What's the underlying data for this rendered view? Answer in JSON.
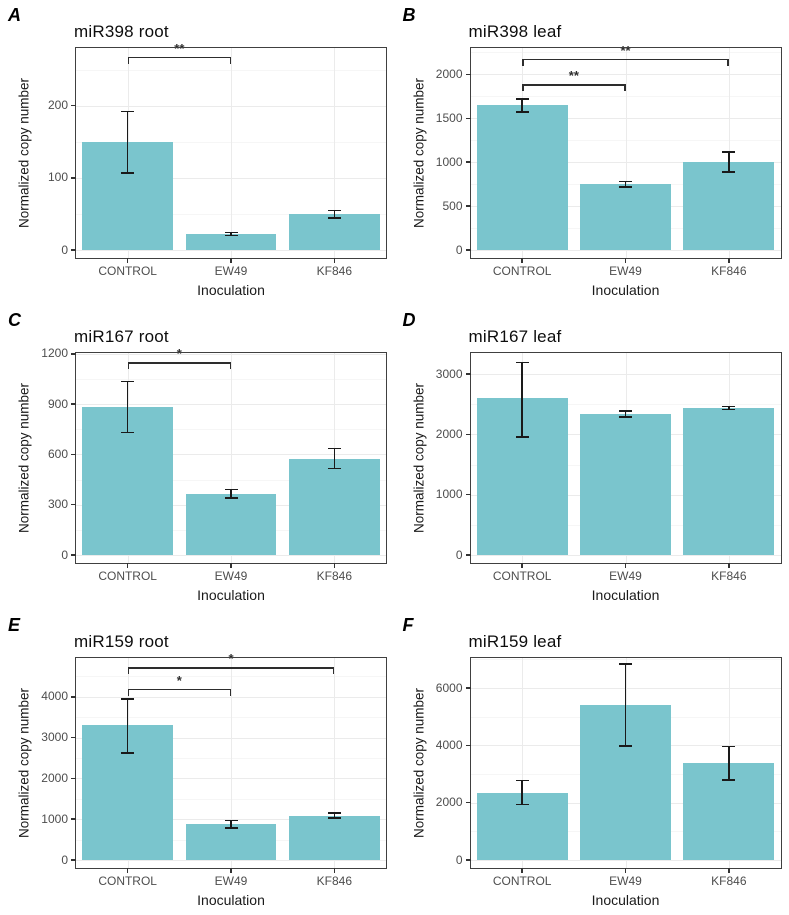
{
  "figure": {
    "ylabel": "Normalized copy number",
    "xlabel": "Inoculation",
    "categories": [
      "CONTROL",
      "EW49",
      "KF846"
    ],
    "colors": {
      "background": "#ffffff",
      "bar_fill": "#7AC5CD",
      "panel_border": "#404040",
      "grid_major": "#ebebeb",
      "grid_minor": "#f6f6f6",
      "tick_label": "#4d4d4d",
      "axis_title": "#1a1a1a",
      "panel_title": "#0d0d0d",
      "errorbar": "#1a1a1a",
      "significance": "#2d2d2d"
    }
  },
  "chart_data": [
    {
      "panel_label": "A",
      "title": "miR398 root",
      "type": "bar",
      "xlabel": "Inoculation",
      "ylabel": "Normalized copy number",
      "categories": [
        "CONTROL",
        "EW49",
        "KF846"
      ],
      "values": [
        150,
        22,
        50
      ],
      "error_low": [
        107,
        20,
        44
      ],
      "error_high": [
        192,
        24,
        55
      ],
      "yticks": [
        0,
        100,
        200
      ],
      "ylim": [
        0,
        280
      ],
      "grid": true,
      "significance": [
        {
          "from": "CONTROL",
          "to": "EW49",
          "label": "**",
          "y": 268
        }
      ]
    },
    {
      "panel_label": "B",
      "title": "miR398 leaf",
      "type": "bar",
      "xlabel": "Inoculation",
      "ylabel": "Normalized copy number",
      "categories": [
        "CONTROL",
        "EW49",
        "KF846"
      ],
      "values": [
        1650,
        750,
        1000
      ],
      "error_low": [
        1570,
        720,
        890
      ],
      "error_high": [
        1720,
        780,
        1115
      ],
      "yticks": [
        0,
        500,
        1000,
        1500,
        2000
      ],
      "ylim": [
        0,
        2300
      ],
      "grid": true,
      "significance": [
        {
          "from": "CONTROL",
          "to": "KF846",
          "label": "**",
          "y": 2180
        },
        {
          "from": "CONTROL",
          "to": "EW49",
          "label": "**",
          "y": 1890
        }
      ]
    },
    {
      "panel_label": "C",
      "title": "miR167 root",
      "type": "bar",
      "xlabel": "Inoculation",
      "ylabel": "Normalized copy number",
      "categories": [
        "CONTROL",
        "EW49",
        "KF846"
      ],
      "values": [
        880,
        365,
        575
      ],
      "error_low": [
        730,
        340,
        515
      ],
      "error_high": [
        1035,
        390,
        635
      ],
      "yticks": [
        0,
        300,
        600,
        900,
        1200
      ],
      "ylim": [
        0,
        1205
      ],
      "grid": true,
      "significance": [
        {
          "from": "CONTROL",
          "to": "EW49",
          "label": "*",
          "y": 1150
        }
      ]
    },
    {
      "panel_label": "D",
      "title": "miR167 leaf",
      "type": "bar",
      "xlabel": "Inoculation",
      "ylabel": "Normalized copy number",
      "categories": [
        "CONTROL",
        "EW49",
        "KF846"
      ],
      "values": [
        2600,
        2340,
        2440
      ],
      "error_low": [
        1960,
        2290,
        2410
      ],
      "error_high": [
        3190,
        2390,
        2465
      ],
      "yticks": [
        0,
        1000,
        2000,
        3000
      ],
      "ylim": [
        0,
        3350
      ],
      "grid": true,
      "significance": []
    },
    {
      "panel_label": "E",
      "title": "miR159 root",
      "type": "bar",
      "xlabel": "Inoculation",
      "ylabel": "Normalized copy number",
      "categories": [
        "CONTROL",
        "EW49",
        "KF846"
      ],
      "values": [
        3300,
        880,
        1090
      ],
      "error_low": [
        2620,
        790,
        1030
      ],
      "error_high": [
        3950,
        970,
        1150
      ],
      "yticks": [
        0,
        1000,
        2000,
        3000,
        4000
      ],
      "ylim": [
        0,
        4950
      ],
      "grid": true,
      "significance": [
        {
          "from": "CONTROL",
          "to": "KF846",
          "label": "*",
          "y": 4720
        },
        {
          "from": "CONTROL",
          "to": "EW49",
          "label": "*",
          "y": 4200
        }
      ]
    },
    {
      "panel_label": "F",
      "title": "miR159 leaf",
      "type": "bar",
      "xlabel": "Inoculation",
      "ylabel": "Normalized copy number",
      "categories": [
        "CONTROL",
        "EW49",
        "KF846"
      ],
      "values": [
        2350,
        5400,
        3400
      ],
      "error_low": [
        1930,
        3980,
        2790
      ],
      "error_high": [
        2770,
        6850,
        3960
      ],
      "yticks": [
        0,
        2000,
        4000,
        6000
      ],
      "ylim": [
        0,
        7050
      ],
      "grid": true,
      "significance": []
    }
  ]
}
